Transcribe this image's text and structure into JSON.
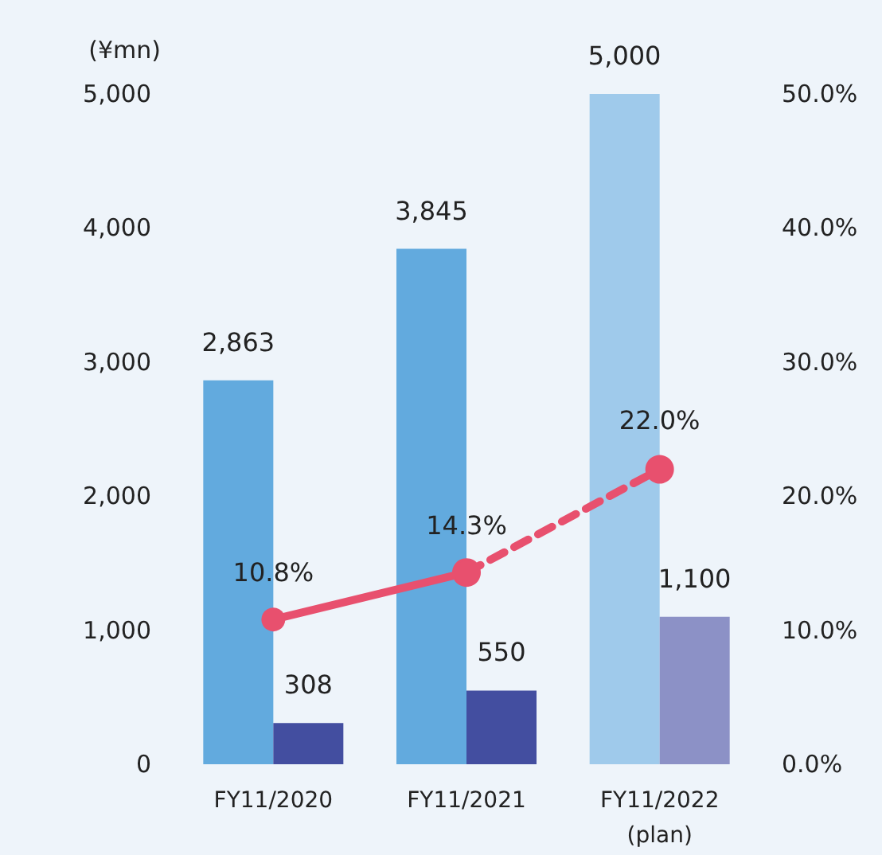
{
  "chart_data": {
    "type": "bar",
    "ylabel": "(¥mn)",
    "categories": [
      "FY11/2020",
      "FY11/2021",
      "FY11/2022\n(plan)"
    ],
    "series": [
      {
        "colors": [
          "#62aade",
          "#62aade",
          "#9fcaeb"
        ],
        "values": [
          2863,
          3845,
          5000
        ],
        "value_labels": [
          "2,863",
          "3,845",
          "5,000"
        ]
      },
      {
        "colors": [
          "#434ea0",
          "#434ea0",
          "#8c91c6"
        ],
        "values": [
          308,
          550,
          1100
        ],
        "value_labels": [
          "308",
          "550",
          "1,100"
        ]
      },
      {
        "type": "line",
        "axis": "y2",
        "color": "#e8506e",
        "line_style": "solid",
        "marker": "circle",
        "values": [
          10.8,
          14.3,
          null
        ],
        "value_labels": [
          "10.8%",
          "14.3%",
          null
        ]
      },
      {
        "type": "line",
        "axis": "y2",
        "color": "#e8506e",
        "line_style": "dashed",
        "marker": "circle",
        "values": [
          null,
          14.3,
          22.0
        ],
        "value_labels": [
          null,
          null,
          "22.0%"
        ]
      }
    ],
    "ylim": [
      0,
      5000
    ],
    "yticks": [
      0,
      {
        "value": 1000,
        "label": "1,000"
      },
      {
        "value": 2000,
        "label": "2,000"
      },
      {
        "value": 3000,
        "label": "3,000"
      },
      {
        "value": 4000,
        "label": "4,000"
      },
      {
        "value": 5000,
        "label": "5,000"
      }
    ],
    "y2lim": [
      0,
      50
    ],
    "y2ticks": [
      {
        "value": 0,
        "label": "0.0%"
      },
      {
        "value": 10,
        "label": "10.0%"
      },
      {
        "value": 20,
        "label": "20.0%"
      },
      {
        "value": 30,
        "label": "30.0%"
      },
      {
        "value": 40,
        "label": "40.0%"
      },
      {
        "value": 50,
        "label": "50.0%"
      }
    ],
    "grid": false
  }
}
